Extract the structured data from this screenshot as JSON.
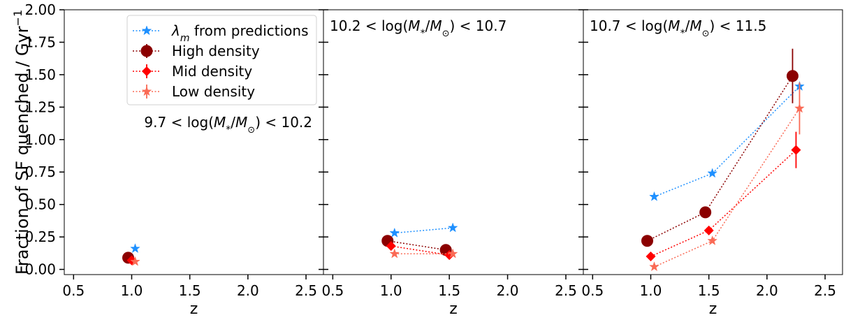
{
  "chart_data": {
    "type": "scatter",
    "ylabel": "Fraction of SF quenched / Gyr",
    "ylabel_superscript": "−1",
    "ylim": [
      -0.04,
      2.0
    ],
    "xlim": [
      0.42,
      2.65
    ],
    "xticks": [
      0.5,
      1.0,
      1.5,
      2.0,
      2.5
    ],
    "xtick_labels": [
      "0.5",
      "1.0",
      "1.5",
      "2.0",
      "2.5"
    ],
    "yticks": [
      0.0,
      0.25,
      0.5,
      0.75,
      1.0,
      1.25,
      1.5,
      1.75,
      2.0
    ],
    "ytick_labels": [
      "0.00",
      "0.25",
      "0.50",
      "0.75",
      "1.00",
      "1.25",
      "1.50",
      "1.75",
      "2.00"
    ],
    "grid": false,
    "legend": {
      "panel": 0,
      "entries": [
        {
          "prefix": "λ",
          "sub": "m",
          "text": " from predictions",
          "series": "predictions"
        },
        {
          "text": "High density",
          "series": "high"
        },
        {
          "text": "Mid density",
          "series": "mid"
        },
        {
          "text": "Low density",
          "series": "low"
        }
      ]
    },
    "series_style": {
      "predictions": {
        "color": "#1e90ff",
        "marker": "star"
      },
      "high": {
        "color": "#8b0000",
        "marker": "circle"
      },
      "mid": {
        "color": "#ff0000",
        "marker": "diamond"
      },
      "low": {
        "color": "#fa6a55",
        "marker": "star"
      }
    },
    "panels": [
      {
        "xlabel": "z",
        "title_parts": {
          "pre": "9.7 < log(",
          "mid": "/",
          "post": ") < 10.2"
        },
        "title_position": "center-right",
        "series": [
          {
            "key": "predictions",
            "x": [
              1.03
            ],
            "y": [
              0.16
            ],
            "yerr": [
              0
            ]
          },
          {
            "key": "high",
            "x": [
              0.97
            ],
            "y": [
              0.09
            ],
            "yerr": [
              0
            ]
          },
          {
            "key": "mid",
            "x": [
              1.0
            ],
            "y": [
              0.07
            ],
            "yerr": [
              0
            ]
          },
          {
            "key": "low",
            "x": [
              1.03
            ],
            "y": [
              0.06
            ],
            "yerr": [
              0
            ]
          }
        ]
      },
      {
        "xlabel": "z",
        "title_parts": {
          "pre": "10.2 < log(",
          "mid": "/",
          "post": ") < 10.7"
        },
        "title_position": "top-left",
        "series": [
          {
            "key": "predictions",
            "x": [
              1.03,
              1.53
            ],
            "y": [
              0.28,
              0.32
            ],
            "yerr": [
              0,
              0
            ]
          },
          {
            "key": "high",
            "x": [
              0.97,
              1.47
            ],
            "y": [
              0.22,
              0.15
            ],
            "yerr": [
              0,
              0
            ]
          },
          {
            "key": "mid",
            "x": [
              1.0,
              1.5
            ],
            "y": [
              0.18,
              0.11
            ],
            "yerr": [
              0,
              0
            ]
          },
          {
            "key": "low",
            "x": [
              1.03,
              1.53
            ],
            "y": [
              0.12,
              0.12
            ],
            "yerr": [
              0,
              0
            ]
          }
        ]
      },
      {
        "xlabel": "z",
        "title_parts": {
          "pre": "10.7 < log(",
          "mid": "/",
          "post": ") < 11.5"
        },
        "title_position": "top-left",
        "series": [
          {
            "key": "predictions",
            "x": [
              1.03,
              1.53,
              2.28
            ],
            "y": [
              0.56,
              0.74,
              1.41
            ],
            "yerr": [
              0,
              0,
              0
            ]
          },
          {
            "key": "high",
            "x": [
              0.97,
              1.47,
              2.22
            ],
            "y": [
              0.22,
              0.44,
              1.49
            ],
            "yerr": [
              0,
              0,
              0.21
            ]
          },
          {
            "key": "mid",
            "x": [
              1.0,
              1.5,
              2.25
            ],
            "y": [
              0.1,
              0.3,
              0.92
            ],
            "yerr": [
              0,
              0,
              0.14
            ]
          },
          {
            "key": "low",
            "x": [
              1.03,
              1.53,
              2.28
            ],
            "y": [
              0.02,
              0.22,
              1.24
            ],
            "yerr": [
              0,
              0,
              0.2
            ]
          }
        ]
      }
    ]
  }
}
